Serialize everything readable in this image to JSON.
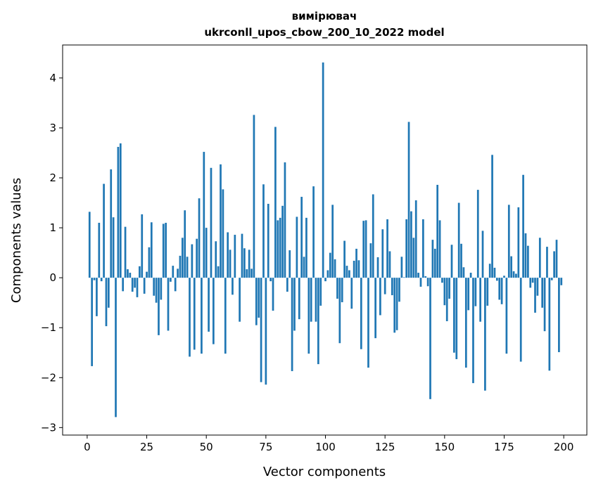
{
  "chart_data": {
    "type": "bar",
    "title": [
      "вимірювач",
      "ukrconll_upos_cbow_200_10_2022 model"
    ],
    "xlabel": "Vector components",
    "ylabel": "Components values",
    "xlim": [
      -10.3,
      209.7
    ],
    "ylim": [
      -3.15,
      4.66
    ],
    "xticks": [
      0,
      25,
      50,
      75,
      100,
      125,
      150,
      175,
      200
    ],
    "xtick_labels": [
      "0",
      "25",
      "50",
      "75",
      "100",
      "125",
      "150",
      "175",
      "200"
    ],
    "yticks": [
      -3,
      -2,
      -1,
      0,
      1,
      2,
      3,
      4
    ],
    "ytick_labels": [
      "−3",
      "−2",
      "−1",
      "0",
      "1",
      "2",
      "3",
      "4"
    ],
    "grid": false,
    "color": "#1f77b4",
    "values": [
      0.0,
      1.32,
      -1.77,
      -0.05,
      -0.77,
      1.1,
      -0.07,
      1.88,
      -0.97,
      -0.6,
      2.17,
      1.21,
      -2.79,
      2.62,
      2.69,
      -0.27,
      1.02,
      0.17,
      0.1,
      -0.28,
      -0.2,
      -0.39,
      0.23,
      1.27,
      -0.32,
      0.12,
      0.61,
      1.11,
      -0.36,
      -0.5,
      -1.15,
      -0.44,
      1.08,
      1.1,
      -1.06,
      -0.08,
      0.24,
      -0.27,
      0.18,
      0.44,
      0.8,
      1.35,
      0.42,
      -1.58,
      0.67,
      -1.44,
      0.78,
      1.59,
      -1.52,
      2.52,
      1.0,
      -1.08,
      2.2,
      -1.33,
      0.73,
      0.23,
      2.27,
      1.77,
      -1.52,
      0.91,
      0.56,
      -0.34,
      0.86,
      0.0,
      -0.88,
      0.88,
      0.59,
      0.17,
      0.56,
      0.18,
      3.26,
      -0.95,
      -0.8,
      -2.09,
      1.87,
      -2.14,
      1.48,
      -0.07,
      -0.66,
      3.02,
      1.15,
      1.2,
      1.44,
      2.31,
      -0.28,
      0.55,
      -1.87,
      -1.06,
      1.22,
      -0.83,
      1.62,
      0.42,
      1.2,
      -1.52,
      -0.88,
      1.83,
      -0.88,
      -1.73,
      -0.56,
      4.31,
      -0.07,
      0.15,
      0.5,
      1.46,
      0.37,
      -0.42,
      -1.31,
      -0.49,
      0.74,
      0.24,
      0.15,
      -0.62,
      0.34,
      0.58,
      0.35,
      -1.43,
      1.14,
      1.15,
      -1.8,
      0.69,
      1.67,
      -1.21,
      0.41,
      -0.75,
      0.97,
      -0.33,
      1.17,
      0.53,
      -0.35,
      -1.1,
      -1.05,
      -0.48,
      0.42,
      0.01,
      1.17,
      3.12,
      1.33,
      0.8,
      1.55,
      0.1,
      -0.18,
      1.17,
      0.03,
      -0.17,
      -2.43,
      0.76,
      0.58,
      1.86,
      1.15,
      -0.1,
      -0.55,
      -0.87,
      -0.42,
      0.66,
      -1.5,
      -1.63,
      1.5,
      0.68,
      0.21,
      -1.8,
      -0.65,
      0.1,
      -2.11,
      -0.57,
      1.76,
      -0.88,
      0.94,
      -2.26,
      -0.56,
      0.28,
      2.46,
      0.2,
      -0.06,
      -0.44,
      -0.53,
      0.04,
      -1.52,
      1.46,
      0.43,
      0.13,
      0.08,
      1.41,
      -1.68,
      2.06,
      0.89,
      0.64,
      -0.2,
      -0.1,
      -0.7,
      -0.36,
      0.8,
      -0.6,
      -1.07,
      0.62,
      -1.86,
      -0.05,
      0.53,
      0.76,
      -1.49,
      -0.15
    ]
  }
}
